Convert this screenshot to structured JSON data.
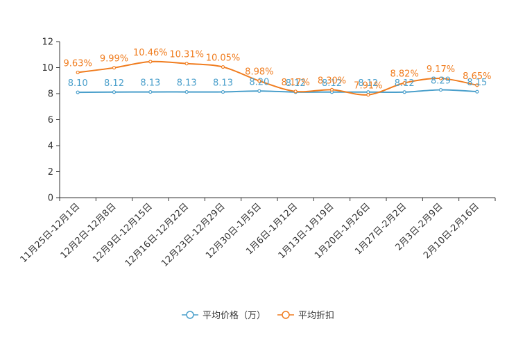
{
  "chart_data": {
    "type": "line",
    "categories": [
      "11月25日-12月1日",
      "12月2日-12月8日",
      "12月9日-12月15日",
      "12月16日-12月22日",
      "12月23日-12月29日",
      "12月30日-1月5日",
      "1月6日-1月12日",
      "1月13日-1月19日",
      "1月20日-1月26日",
      "1月27日-2月2日",
      "2月3日-2月9日",
      "2月10日-2月16日"
    ],
    "ylim": [
      0,
      12
    ],
    "yticks": [
      0,
      2,
      4,
      6,
      8,
      10,
      12
    ],
    "series": [
      {
        "name": "平均价格（万）",
        "color": "#4a9fcb",
        "values": [
          8.1,
          8.12,
          8.13,
          8.13,
          8.13,
          8.2,
          8.12,
          8.12,
          8.12,
          8.12,
          8.29,
          8.15
        ],
        "labels": [
          "8.10",
          "8.12",
          "8.13",
          "8.13",
          "8.13",
          "8.20",
          "8.12",
          "8.12",
          "8.12",
          "8.12",
          "8.29",
          "8.15"
        ]
      },
      {
        "name": "平均折扣",
        "color": "#f07c1e",
        "values": [
          9.63,
          9.99,
          10.46,
          10.31,
          10.05,
          8.98,
          8.17,
          8.3,
          7.91,
          8.82,
          9.17,
          8.65
        ],
        "labels": [
          "9.63%",
          "9.99%",
          "10.46%",
          "10.31%",
          "10.05%",
          "8.98%",
          "8.17%",
          "8.30%",
          "7.91%",
          "8.82%",
          "9.17%",
          "8.65%"
        ]
      }
    ],
    "legend": "bottom-center"
  }
}
